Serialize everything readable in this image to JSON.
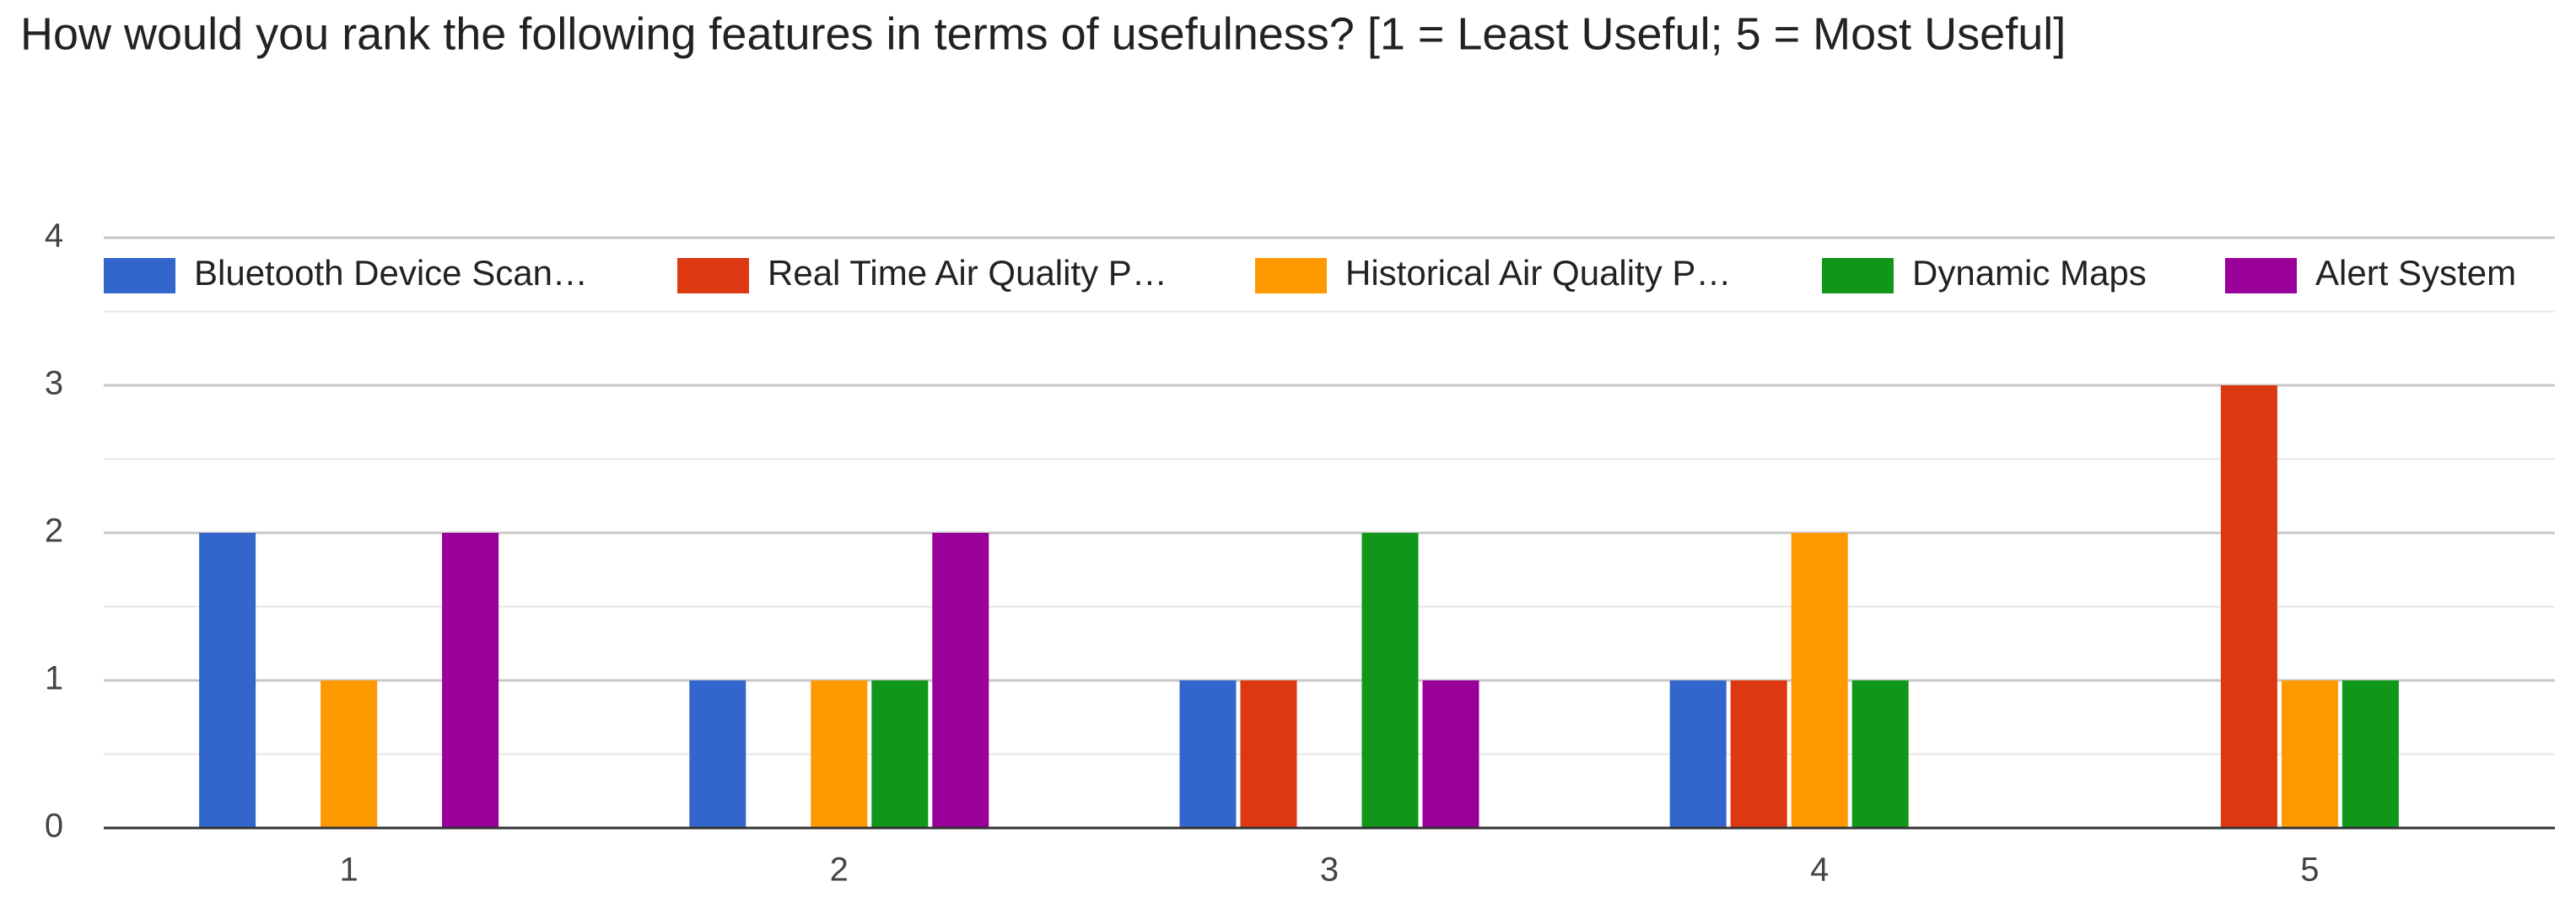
{
  "chart_data": {
    "type": "bar",
    "title": "How would you rank the following features in terms of usefulness?  [1 = Least Useful; 5 = Most Useful]",
    "categories": [
      "1",
      "2",
      "3",
      "4",
      "5"
    ],
    "series": [
      {
        "name": "Bluetooth Device Scan…",
        "color": "#3366cc",
        "values": [
          2,
          1,
          1,
          1,
          0
        ]
      },
      {
        "name": "Real Time Air Quality P…",
        "color": "#dc3912",
        "values": [
          0,
          0,
          1,
          1,
          3
        ]
      },
      {
        "name": "Historical Air Quality P…",
        "color": "#ff9900",
        "values": [
          1,
          1,
          0,
          2,
          1
        ]
      },
      {
        "name": "Dynamic Maps",
        "color": "#109618",
        "values": [
          0,
          1,
          2,
          1,
          1
        ]
      },
      {
        "name": "Alert System",
        "color": "#990099",
        "values": [
          2,
          2,
          1,
          0,
          0
        ]
      }
    ],
    "ylim": [
      0,
      4
    ],
    "yticks": [
      0,
      1,
      2,
      3,
      4
    ],
    "grid": true,
    "legend": "top"
  }
}
